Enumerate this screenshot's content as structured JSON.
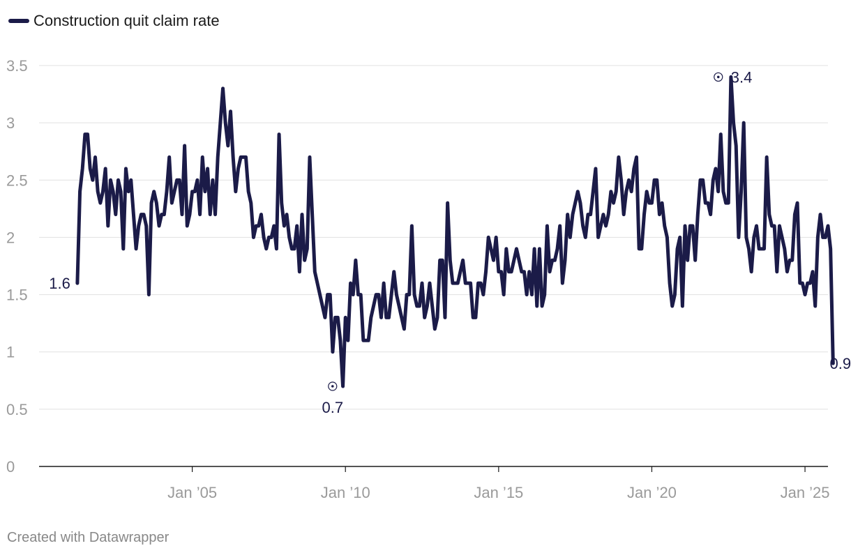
{
  "legend": {
    "label": "Construction quit claim rate",
    "color": "#1b1b48"
  },
  "footer": {
    "credit": "Created with Datawrapper"
  },
  "colors": {
    "line": "#1b1b48",
    "grid": "#e1e1e1",
    "axis": "#1a1a1a",
    "tick_text": "#9a9a9a",
    "label_text": "#1b1b48"
  },
  "chart_data": {
    "type": "line",
    "title": "",
    "xlabel": "",
    "ylabel": "",
    "x_range": [
      2000.0,
      2025.75
    ],
    "ylim": [
      0,
      3.5
    ],
    "y_ticks": [
      0,
      0.5,
      1,
      1.5,
      2,
      2.5,
      3,
      3.5
    ],
    "y_tick_labels": [
      "0",
      "0.5",
      "1",
      "1.5",
      "2",
      "2.5",
      "3",
      "3.5"
    ],
    "x_ticks": [
      2005,
      2010,
      2015,
      2020,
      2025
    ],
    "x_tick_labels": [
      "Jan ’05",
      "Jan ’10",
      "Jan ’15",
      "Jan ’20",
      "Jan ’25"
    ],
    "grid": true,
    "legend_position": "top-left",
    "series": [
      {
        "name": "Construction quit claim rate",
        "x_start": 2001.25,
        "x_step": 0.0833333,
        "values": [
          1.6,
          2.4,
          2.6,
          2.9,
          2.9,
          2.6,
          2.5,
          2.7,
          2.4,
          2.3,
          2.4,
          2.6,
          2.1,
          2.5,
          2.4,
          2.2,
          2.5,
          2.4,
          1.9,
          2.6,
          2.4,
          2.5,
          2.2,
          1.9,
          2.1,
          2.2,
          2.2,
          2.1,
          1.5,
          2.3,
          2.4,
          2.3,
          2.1,
          2.2,
          2.2,
          2.4,
          2.7,
          2.3,
          2.4,
          2.5,
          2.5,
          2.2,
          2.8,
          2.1,
          2.2,
          2.4,
          2.4,
          2.5,
          2.2,
          2.7,
          2.4,
          2.6,
          2.2,
          2.5,
          2.2,
          2.7,
          3.0,
          3.3,
          3.0,
          2.8,
          3.1,
          2.7,
          2.4,
          2.6,
          2.7,
          2.7,
          2.7,
          2.4,
          2.3,
          2.0,
          2.1,
          2.1,
          2.2,
          2.0,
          1.9,
          2.0,
          2.0,
          2.1,
          1.9,
          2.9,
          2.3,
          2.1,
          2.2,
          2.0,
          1.9,
          1.9,
          2.1,
          1.7,
          2.2,
          1.8,
          1.9,
          2.7,
          2.2,
          1.7,
          1.6,
          1.5,
          1.4,
          1.3,
          1.5,
          1.5,
          1.0,
          1.3,
          1.3,
          1.1,
          0.7,
          1.3,
          1.1,
          1.6,
          1.5,
          1.8,
          1.5,
          1.5,
          1.1,
          1.1,
          1.1,
          1.3,
          1.4,
          1.5,
          1.5,
          1.3,
          1.6,
          1.3,
          1.3,
          1.5,
          1.7,
          1.5,
          1.4,
          1.3,
          1.2,
          1.5,
          1.5,
          2.1,
          1.5,
          1.4,
          1.4,
          1.6,
          1.3,
          1.4,
          1.6,
          1.4,
          1.2,
          1.3,
          1.8,
          1.8,
          1.3,
          2.3,
          1.8,
          1.6,
          1.6,
          1.6,
          1.7,
          1.8,
          1.6,
          1.6,
          1.6,
          1.3,
          1.3,
          1.6,
          1.6,
          1.5,
          1.7,
          2.0,
          1.9,
          1.8,
          2.0,
          1.7,
          1.7,
          1.5,
          1.9,
          1.7,
          1.7,
          1.8,
          1.9,
          1.8,
          1.7,
          1.7,
          1.5,
          1.7,
          1.5,
          1.9,
          1.4,
          1.9,
          1.4,
          1.5,
          2.1,
          1.7,
          1.8,
          1.8,
          1.9,
          2.1,
          1.6,
          1.8,
          2.2,
          2.0,
          2.2,
          2.3,
          2.4,
          2.3,
          2.1,
          2.0,
          2.2,
          2.2,
          2.4,
          2.6,
          2.0,
          2.1,
          2.2,
          2.1,
          2.2,
          2.4,
          2.3,
          2.4,
          2.7,
          2.5,
          2.2,
          2.4,
          2.5,
          2.4,
          2.6,
          2.7,
          1.9,
          1.9,
          2.2,
          2.4,
          2.3,
          2.3,
          2.5,
          2.5,
          2.2,
          2.3,
          2.1,
          2.0,
          1.6,
          1.4,
          1.5,
          1.9,
          2.0,
          1.4,
          2.1,
          1.8,
          2.1,
          2.1,
          1.8,
          2.2,
          2.5,
          2.5,
          2.3,
          2.3,
          2.2,
          2.5,
          2.6,
          2.4,
          2.9,
          2.4,
          2.3,
          2.3,
          3.4,
          3.0,
          2.8,
          2.0,
          2.4,
          3.0,
          2.0,
          1.9,
          1.7,
          2.0,
          2.1,
          1.9,
          1.9,
          1.9,
          2.7,
          2.2,
          2.1,
          2.1,
          1.7,
          2.1,
          2.0,
          1.9,
          1.7,
          1.8,
          1.8,
          2.2,
          2.3,
          1.6,
          1.6,
          1.5,
          1.6,
          1.6,
          1.7,
          1.4,
          2.0,
          2.2,
          2.0,
          2.0,
          2.1,
          1.9,
          0.9
        ]
      }
    ],
    "annotations": [
      {
        "label": "1.6",
        "x": 2001.25,
        "y": 1.6,
        "position": "left",
        "marker": false
      },
      {
        "label": "0.7",
        "x": 2009.58,
        "y": 0.7,
        "position": "below",
        "marker": true
      },
      {
        "label": "3.4",
        "x": 2022.17,
        "y": 3.4,
        "position": "right",
        "marker": true
      },
      {
        "label": "0.9",
        "x": 2025.58,
        "y": 0.9,
        "position": "right",
        "marker": false
      }
    ]
  }
}
